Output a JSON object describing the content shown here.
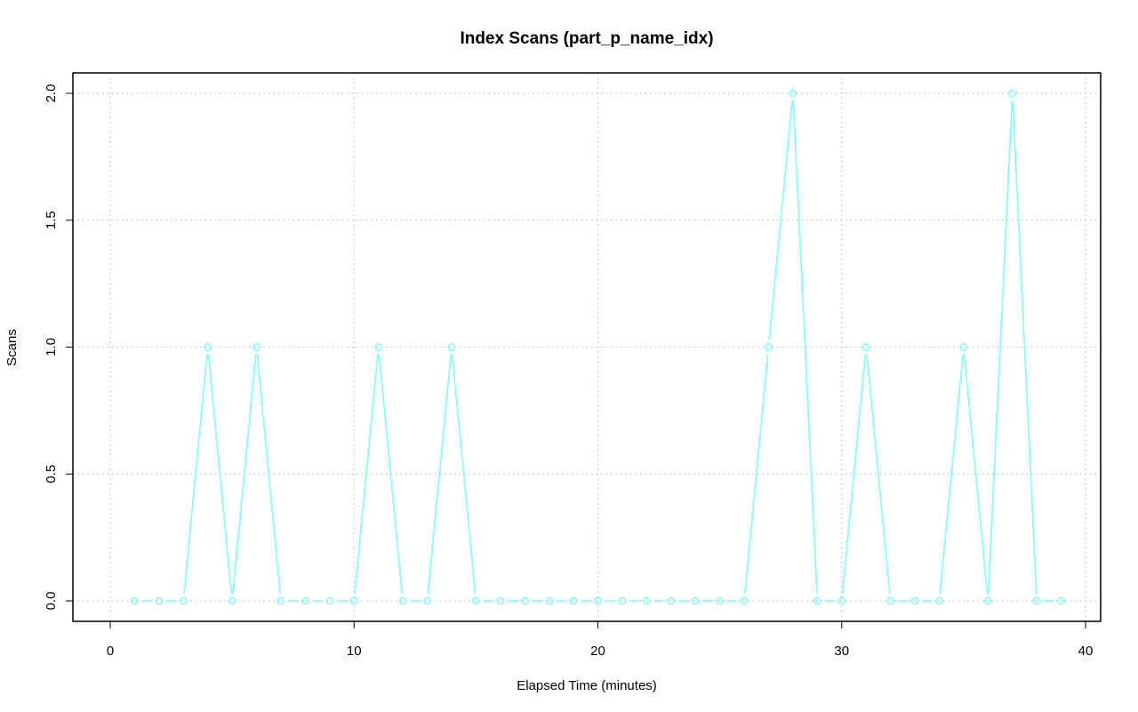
{
  "chart_data": {
    "type": "line",
    "title": "Index Scans (part_p_name_idx)",
    "xlabel": "Elapsed Time (minutes)",
    "ylabel": "Scans",
    "xlim": [
      0,
      40
    ],
    "ylim": [
      0,
      2
    ],
    "xticks": [
      0,
      10,
      20,
      30,
      40
    ],
    "yticks": [
      0.0,
      0.5,
      1.0,
      1.5,
      2.0
    ],
    "xtick_labels": [
      "0",
      "10",
      "20",
      "30",
      "40"
    ],
    "ytick_labels": [
      "0.0",
      "0.5",
      "1.0",
      "1.5",
      "2.0"
    ],
    "grid": true,
    "series_color": "#80ffff",
    "series": [
      {
        "x": [
          1,
          2,
          3,
          4,
          5,
          6,
          7,
          8,
          9,
          10,
          11,
          12,
          13,
          14,
          15,
          16,
          17,
          18,
          19,
          20,
          21,
          22,
          23,
          24,
          25,
          26,
          27,
          28,
          29,
          30,
          31,
          32,
          33,
          34,
          35,
          36,
          37,
          38,
          39
        ],
        "values": [
          0,
          0,
          0,
          1,
          0,
          1,
          0,
          0,
          0,
          0,
          1,
          0,
          0,
          1,
          0,
          0,
          0,
          0,
          0,
          0,
          0,
          0,
          0,
          0,
          0,
          0,
          1,
          2,
          0,
          0,
          1,
          0,
          0,
          0,
          1,
          0,
          2,
          0,
          0
        ]
      }
    ]
  }
}
